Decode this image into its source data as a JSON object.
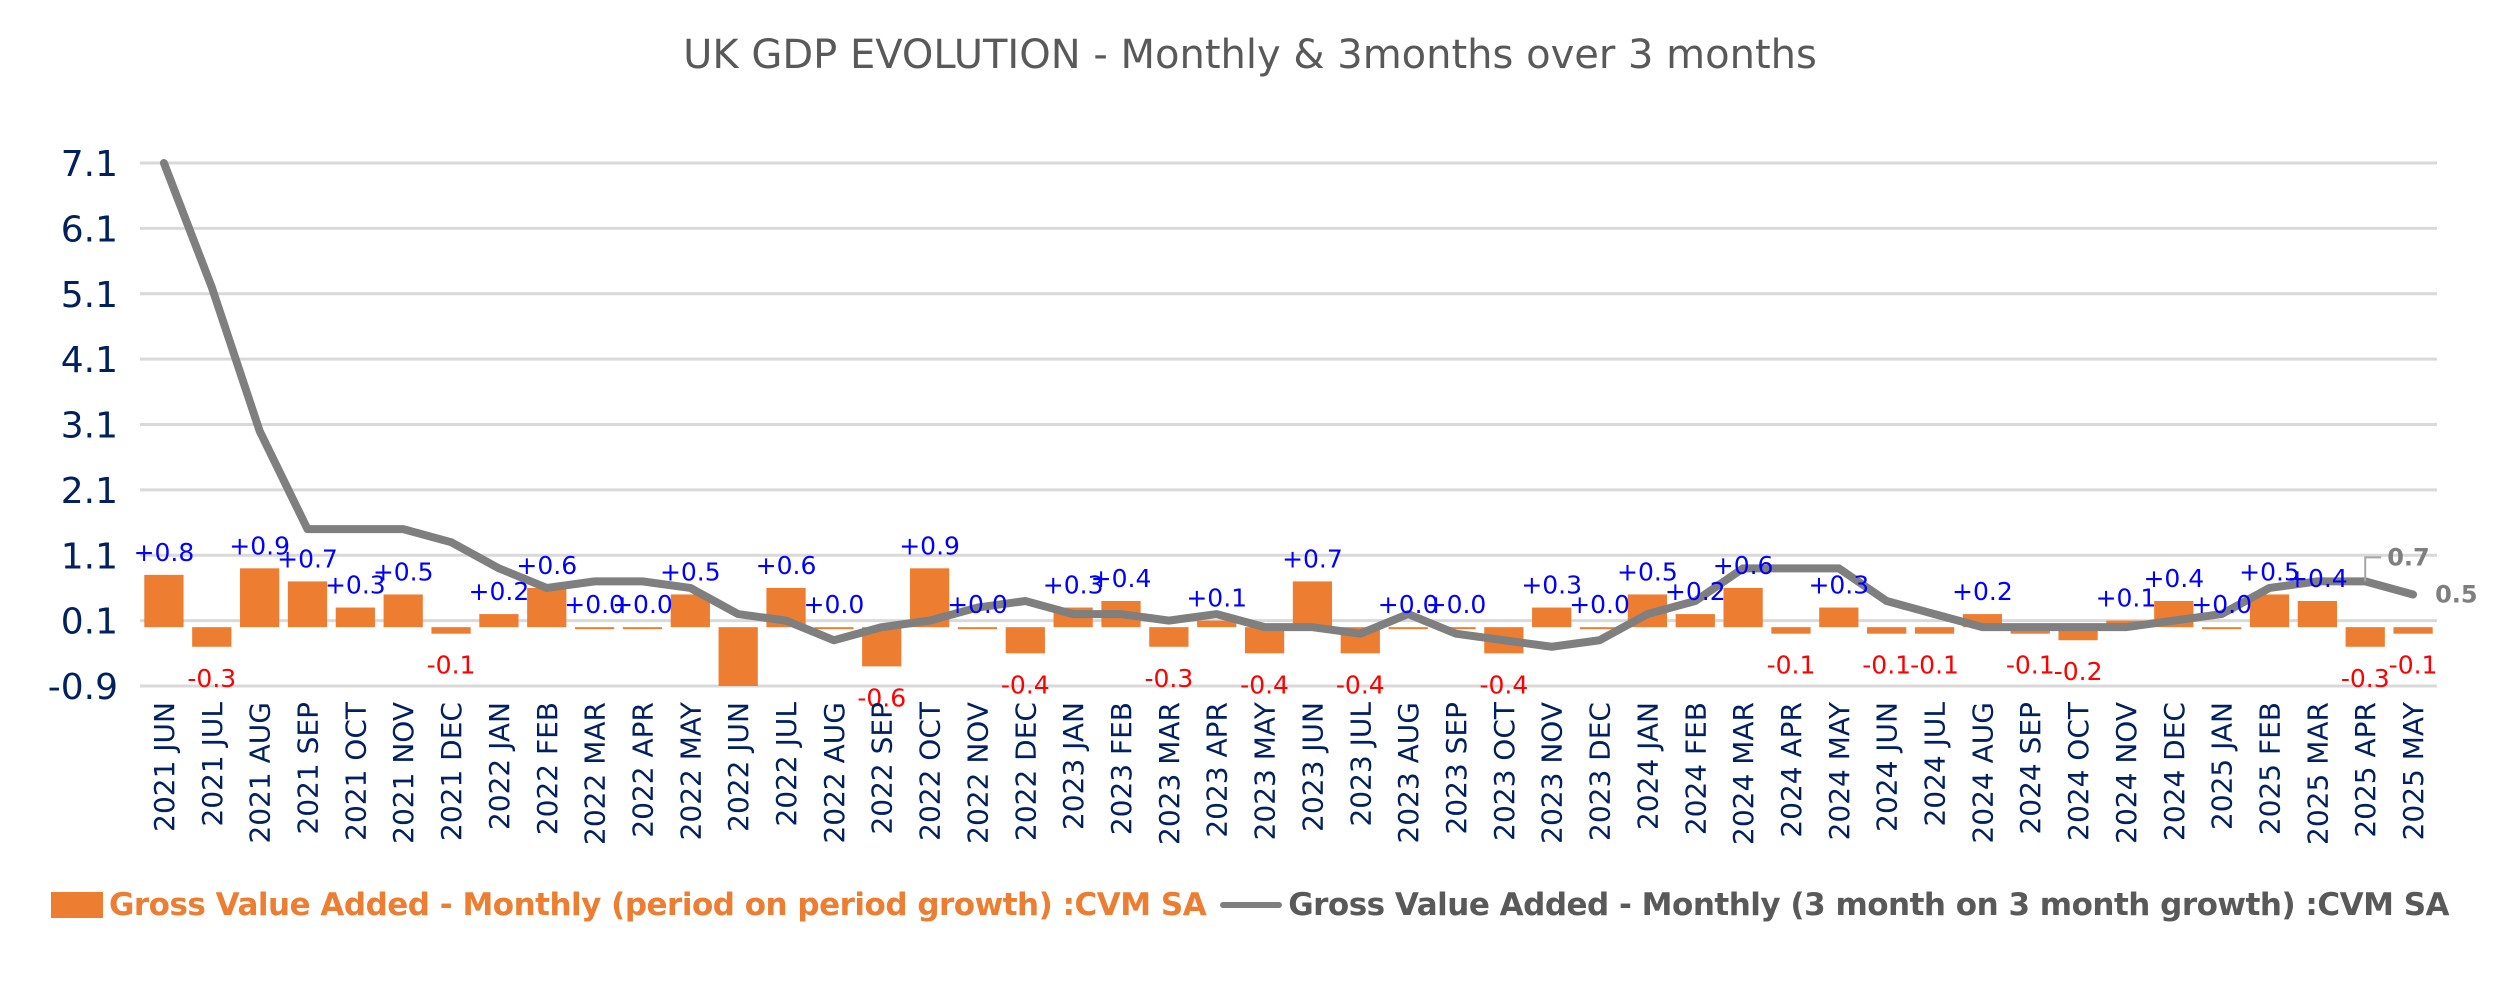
{
  "chart_data": {
    "type": "bar+line",
    "title": "UK GDP EVOLUTION  - Monthly & 3months over 3 months",
    "xlabel": "",
    "ylabel": "",
    "ylim": [
      -0.9,
      7.1
    ],
    "yticks": [
      "7.1",
      "6.1",
      "5.1",
      "4.1",
      "3.1",
      "2.1",
      "1.1",
      "0.1",
      "-0.9"
    ],
    "ytick_values": [
      7.1,
      6.1,
      5.1,
      4.1,
      3.1,
      2.1,
      1.1,
      0.1,
      -0.9
    ],
    "grid": true,
    "legend_position": "bottom",
    "categories": [
      "2021 JUN",
      "2021 JUL",
      "2021 AUG",
      "2021 SEP",
      "2021 OCT",
      "2021 NOV",
      "2021 DEC",
      "2022 JAN",
      "2022 FEB",
      "2022 MAR",
      "2022 APR",
      "2022 MAY",
      "2022 JUN",
      "2022 JUL",
      "2022 AUG",
      "2022 SEP",
      "2022 OCT",
      "2022 NOV",
      "2022 DEC",
      "2023 JAN",
      "2023 FEB",
      "2023 MAR",
      "2023 APR",
      "2023 MAY",
      "2023 JUN",
      "2023 JUL",
      "2023 AUG",
      "2023 SEP",
      "2023 OCT",
      "2023 NOV",
      "2023 DEC",
      "2024 JAN",
      "2024 FEB",
      "2024 MAR",
      "2024 APR",
      "2024 MAY",
      "2024 JUN",
      "2024 JUL",
      "2024 AUG",
      "2024 SEP",
      "2024 OCT",
      "2024 NOV",
      "2024 DEC",
      "2025 JAN",
      "2025 FEB",
      "2025 MAR",
      "2025 APR",
      "2025 MAY"
    ],
    "series": [
      {
        "name": "Gross Value Added - Monthly (period on period growth) :CVM SA",
        "type": "bar",
        "color": "#ED7D31",
        "values": [
          0.8,
          -0.3,
          0.9,
          0.7,
          0.3,
          0.5,
          -0.1,
          0.2,
          0.6,
          0.0,
          0.0,
          0.5,
          -1.1,
          0.6,
          0.0,
          -0.6,
          0.9,
          0.0,
          -0.4,
          0.3,
          0.4,
          -0.3,
          0.1,
          -0.4,
          0.7,
          -0.4,
          0.0,
          0.0,
          -0.4,
          0.3,
          0.0,
          0.5,
          0.2,
          0.6,
          -0.1,
          0.3,
          -0.1,
          -0.1,
          0.2,
          -0.1,
          -0.2,
          0.1,
          0.4,
          0.0,
          0.5,
          0.4,
          -0.3,
          -0.1
        ],
        "labels": [
          "+0.8",
          "-0.3",
          "+0.9",
          "+0.7",
          "+0.3",
          "+0.5",
          "-0.1",
          "+0.2",
          "+0.6",
          "+0.0",
          "+0.0",
          "+0.5",
          "",
          "+0.6",
          "+0.0",
          "-0.6",
          "+0.9",
          "+0.0",
          "-0.4",
          "+0.3",
          "+0.4",
          "-0.3",
          "+0.1",
          "-0.4",
          "+0.7",
          "-0.4",
          "+0.0",
          "+0.0",
          "-0.4",
          "+0.3",
          "+0.0",
          "+0.5",
          "+0.2",
          "+0.6",
          "-0.1",
          "+0.3",
          "-0.1",
          "-0.1",
          "+0.2",
          "-0.1",
          "-0.2",
          "+0.1",
          "+0.4",
          "+0.0",
          "+0.5",
          "+0.4",
          "-0.3",
          "-0.1"
        ],
        "positive_label_color": "#0000FF",
        "negative_label_color": "#FF0000"
      },
      {
        "name": "Gross Value Added - Monthly (3 month on 3 month growth) :CVM SA",
        "type": "line",
        "color": "#7F7F7F",
        "values": [
          7.1,
          5.2,
          3.0,
          1.5,
          1.5,
          1.5,
          1.3,
          0.9,
          0.6,
          0.7,
          0.7,
          0.6,
          0.2,
          0.1,
          -0.2,
          0.0,
          0.1,
          0.3,
          0.4,
          0.2,
          0.2,
          0.1,
          0.2,
          0.0,
          0.0,
          -0.1,
          0.2,
          -0.1,
          -0.2,
          -0.3,
          -0.2,
          0.2,
          0.4,
          0.9,
          0.9,
          0.9,
          0.4,
          0.2,
          0.0,
          0.0,
          0.0,
          0.0,
          0.1,
          0.2,
          0.6,
          0.7,
          0.7,
          0.5
        ],
        "point_labels": [
          {
            "index": 46,
            "text": "0.7"
          },
          {
            "index": 47,
            "text": "0.5"
          }
        ]
      }
    ]
  },
  "legend": {
    "bar_label": "Gross Value Added - Monthly (period on period growth) :CVM SA",
    "line_label": "Gross Value Added - Monthly (3 month on 3 month growth) :CVM SA"
  }
}
